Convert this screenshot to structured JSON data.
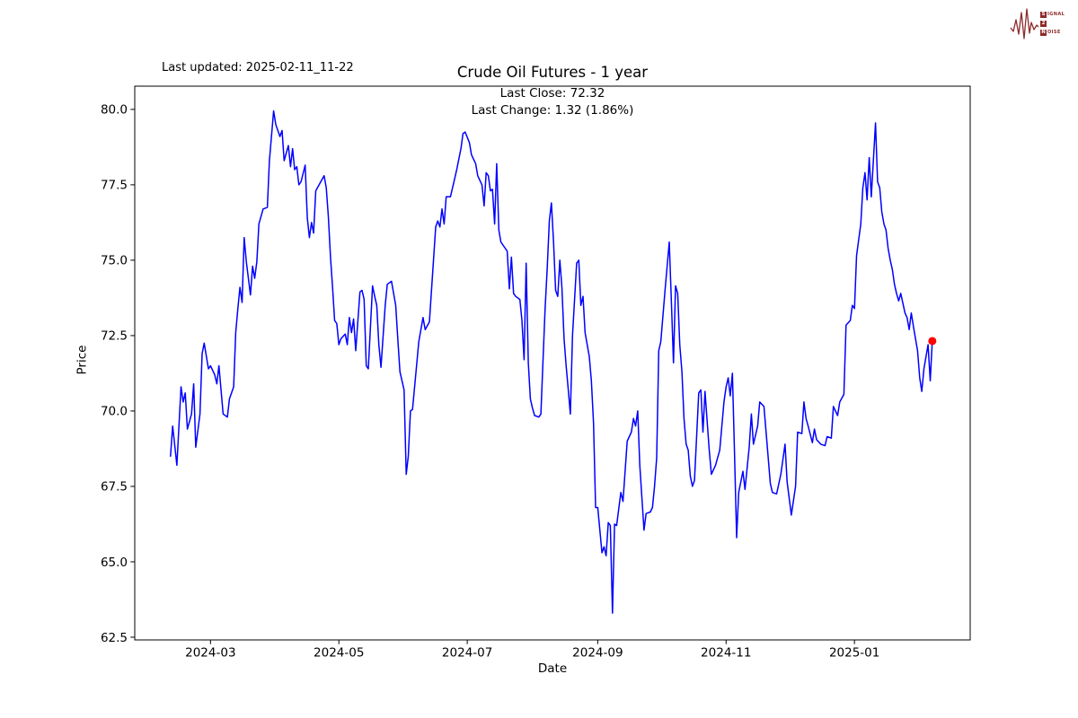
{
  "header": {
    "last_updated": "Last updated: 2025-02-11_11-22",
    "title": "Crude Oil Futures - 1 year",
    "subtitle_line1": "Last Close: 72.32",
    "subtitle_line2": "Last Change: 1.32 (1.86%)"
  },
  "logo": {
    "line1_initial": "S",
    "line1_rest": "IGNAL",
    "line2_initial": "2",
    "line2_rest": "",
    "line3_initial": "N",
    "line3_rest": "OISE",
    "color": "#8e2a2a"
  },
  "chart_data": {
    "type": "line",
    "title": "Crude Oil Futures - 1 year",
    "xlabel": "Date",
    "ylabel": "Price",
    "line_color": "#0000ff",
    "marker_color": "#ff0000",
    "last_close": 72.32,
    "last_change": "1.32 (1.86%)",
    "ylim": [
      62.41,
      80.77
    ],
    "x_domain": [
      "2024-01-25",
      "2025-02-25"
    ],
    "yticks": [
      62.5,
      65.0,
      67.5,
      70.0,
      72.5,
      75.0,
      77.5,
      80.0
    ],
    "xticks": [
      {
        "date": "2024-03-01",
        "label": "2024-03"
      },
      {
        "date": "2024-05-01",
        "label": "2024-05"
      },
      {
        "date": "2024-07-01",
        "label": "2024-07"
      },
      {
        "date": "2024-09-01",
        "label": "2024-09"
      },
      {
        "date": "2024-11-01",
        "label": "2024-11"
      },
      {
        "date": "2025-01-01",
        "label": "2025-01"
      }
    ],
    "grid": false,
    "legend": "none",
    "points": [
      [
        "2024-02-11",
        68.5
      ],
      [
        "2024-02-12",
        69.5
      ],
      [
        "2024-02-14",
        68.2
      ],
      [
        "2024-02-16",
        70.8
      ],
      [
        "2024-02-17",
        70.3
      ],
      [
        "2024-02-18",
        70.6
      ],
      [
        "2024-02-19",
        69.4
      ],
      [
        "2024-02-21",
        69.9
      ],
      [
        "2024-02-22",
        70.9
      ],
      [
        "2024-02-23",
        68.8
      ],
      [
        "2024-02-25",
        69.9
      ],
      [
        "2024-02-26",
        71.9
      ],
      [
        "2024-02-27",
        72.25
      ],
      [
        "2024-02-29",
        71.4
      ],
      [
        "2024-03-01",
        71.5
      ],
      [
        "2024-03-03",
        71.2
      ],
      [
        "2024-03-04",
        70.9
      ],
      [
        "2024-03-05",
        71.5
      ],
      [
        "2024-03-07",
        69.9
      ],
      [
        "2024-03-09",
        69.8
      ],
      [
        "2024-03-10",
        70.4
      ],
      [
        "2024-03-12",
        70.8
      ],
      [
        "2024-03-13",
        72.6
      ],
      [
        "2024-03-14",
        73.4
      ],
      [
        "2024-03-15",
        74.1
      ],
      [
        "2024-03-16",
        73.6
      ],
      [
        "2024-03-17",
        75.75
      ],
      [
        "2024-03-18",
        74.95
      ],
      [
        "2024-03-20",
        73.85
      ],
      [
        "2024-03-21",
        74.8
      ],
      [
        "2024-03-22",
        74.4
      ],
      [
        "2024-03-23",
        74.95
      ],
      [
        "2024-03-24",
        76.2
      ],
      [
        "2024-03-26",
        76.7
      ],
      [
        "2024-03-28",
        76.75
      ],
      [
        "2024-03-29",
        78.3
      ],
      [
        "2024-03-31",
        79.95
      ],
      [
        "2024-04-01",
        79.5
      ],
      [
        "2024-04-03",
        79.1
      ],
      [
        "2024-04-04",
        79.3
      ],
      [
        "2024-04-05",
        78.3
      ],
      [
        "2024-04-07",
        78.8
      ],
      [
        "2024-04-08",
        78.1
      ],
      [
        "2024-04-09",
        78.7
      ],
      [
        "2024-04-10",
        78.0
      ],
      [
        "2024-04-11",
        78.1
      ],
      [
        "2024-04-12",
        77.5
      ],
      [
        "2024-04-13",
        77.6
      ],
      [
        "2024-04-15",
        78.15
      ],
      [
        "2024-04-16",
        76.4
      ],
      [
        "2024-04-17",
        75.75
      ],
      [
        "2024-04-18",
        76.25
      ],
      [
        "2024-04-19",
        75.9
      ],
      [
        "2024-04-20",
        77.3
      ],
      [
        "2024-04-24",
        77.8
      ],
      [
        "2024-04-25",
        77.4
      ],
      [
        "2024-04-26",
        76.45
      ],
      [
        "2024-04-27",
        75.1
      ],
      [
        "2024-04-28",
        74.1
      ],
      [
        "2024-04-29",
        73.0
      ],
      [
        "2024-04-30",
        72.9
      ],
      [
        "2024-05-01",
        72.2
      ],
      [
        "2024-05-02",
        72.4
      ],
      [
        "2024-05-04",
        72.55
      ],
      [
        "2024-05-05",
        72.2
      ],
      [
        "2024-05-06",
        73.1
      ],
      [
        "2024-05-07",
        72.6
      ],
      [
        "2024-05-08",
        73.05
      ],
      [
        "2024-05-09",
        72.0
      ],
      [
        "2024-05-11",
        73.95
      ],
      [
        "2024-05-12",
        74.0
      ],
      [
        "2024-05-13",
        73.7
      ],
      [
        "2024-05-14",
        71.5
      ],
      [
        "2024-05-15",
        71.4
      ],
      [
        "2024-05-17",
        74.15
      ],
      [
        "2024-05-18",
        73.8
      ],
      [
        "2024-05-19",
        73.5
      ],
      [
        "2024-05-20",
        72.2
      ],
      [
        "2024-05-21",
        71.45
      ],
      [
        "2024-05-23",
        73.5
      ],
      [
        "2024-05-24",
        74.2
      ],
      [
        "2024-05-26",
        74.3
      ],
      [
        "2024-05-28",
        73.5
      ],
      [
        "2024-05-29",
        72.4
      ],
      [
        "2024-05-30",
        71.3
      ],
      [
        "2024-06-01",
        70.7
      ],
      [
        "2024-06-02",
        67.9
      ],
      [
        "2024-06-03",
        68.5
      ],
      [
        "2024-06-04",
        70.0
      ],
      [
        "2024-06-05",
        70.05
      ],
      [
        "2024-06-08",
        72.3
      ],
      [
        "2024-06-10",
        73.1
      ],
      [
        "2024-06-11",
        72.7
      ],
      [
        "2024-06-13",
        72.95
      ],
      [
        "2024-06-16",
        76.1
      ],
      [
        "2024-06-17",
        76.3
      ],
      [
        "2024-06-18",
        76.1
      ],
      [
        "2024-06-19",
        76.7
      ],
      [
        "2024-06-20",
        76.2
      ],
      [
        "2024-06-21",
        77.1
      ],
      [
        "2024-06-23",
        77.1
      ],
      [
        "2024-06-25",
        77.7
      ],
      [
        "2024-06-26",
        78.0
      ],
      [
        "2024-06-28",
        78.7
      ],
      [
        "2024-06-29",
        79.2
      ],
      [
        "2024-06-30",
        79.25
      ],
      [
        "2024-07-02",
        78.9
      ],
      [
        "2024-07-03",
        78.5
      ],
      [
        "2024-07-05",
        78.2
      ],
      [
        "2024-07-06",
        77.8
      ],
      [
        "2024-07-08",
        77.5
      ],
      [
        "2024-07-09",
        76.8
      ],
      [
        "2024-07-10",
        77.9
      ],
      [
        "2024-07-11",
        77.8
      ],
      [
        "2024-07-12",
        77.3
      ],
      [
        "2024-07-13",
        77.35
      ],
      [
        "2024-07-14",
        76.2
      ],
      [
        "2024-07-15",
        78.2
      ],
      [
        "2024-07-16",
        76.0
      ],
      [
        "2024-07-17",
        75.6
      ],
      [
        "2024-07-19",
        75.4
      ],
      [
        "2024-07-20",
        75.3
      ],
      [
        "2024-07-21",
        74.05
      ],
      [
        "2024-07-22",
        75.1
      ],
      [
        "2024-07-23",
        73.9
      ],
      [
        "2024-07-24",
        73.8
      ],
      [
        "2024-07-26",
        73.7
      ],
      [
        "2024-07-27",
        73.0
      ],
      [
        "2024-07-28",
        71.7
      ],
      [
        "2024-07-29",
        74.9
      ],
      [
        "2024-07-30",
        71.6
      ],
      [
        "2024-07-31",
        70.4
      ],
      [
        "2024-08-01",
        70.1
      ],
      [
        "2024-08-02",
        69.85
      ],
      [
        "2024-08-04",
        69.8
      ],
      [
        "2024-08-05",
        69.9
      ],
      [
        "2024-08-06",
        71.7
      ],
      [
        "2024-08-07",
        73.4
      ],
      [
        "2024-08-08",
        74.7
      ],
      [
        "2024-08-09",
        76.3
      ],
      [
        "2024-08-10",
        76.9
      ],
      [
        "2024-08-11",
        75.6
      ],
      [
        "2024-08-12",
        74.0
      ],
      [
        "2024-08-13",
        73.8
      ],
      [
        "2024-08-14",
        75.0
      ],
      [
        "2024-08-15",
        74.1
      ],
      [
        "2024-08-16",
        72.4
      ],
      [
        "2024-08-17",
        71.5
      ],
      [
        "2024-08-18",
        70.7
      ],
      [
        "2024-08-19",
        69.9
      ],
      [
        "2024-08-20",
        72.5
      ],
      [
        "2024-08-22",
        74.9
      ],
      [
        "2024-08-23",
        75.0
      ],
      [
        "2024-08-24",
        73.5
      ],
      [
        "2024-08-25",
        73.8
      ],
      [
        "2024-08-26",
        72.6
      ],
      [
        "2024-08-28",
        71.8
      ],
      [
        "2024-08-29",
        71.0
      ],
      [
        "2024-08-30",
        69.6
      ],
      [
        "2024-08-31",
        66.8
      ],
      [
        "2024-09-01",
        66.8
      ],
      [
        "2024-09-03",
        65.3
      ],
      [
        "2024-09-04",
        65.5
      ],
      [
        "2024-09-05",
        65.2
      ],
      [
        "2024-09-06",
        66.3
      ],
      [
        "2024-09-07",
        66.2
      ],
      [
        "2024-09-08",
        63.3
      ],
      [
        "2024-09-09",
        66.25
      ],
      [
        "2024-09-10",
        66.2
      ],
      [
        "2024-09-12",
        67.3
      ],
      [
        "2024-09-13",
        67.0
      ],
      [
        "2024-09-15",
        69.0
      ],
      [
        "2024-09-17",
        69.3
      ],
      [
        "2024-09-18",
        69.75
      ],
      [
        "2024-09-19",
        69.5
      ],
      [
        "2024-09-20",
        70.0
      ],
      [
        "2024-09-21",
        68.2
      ],
      [
        "2024-09-23",
        66.05
      ],
      [
        "2024-09-24",
        66.6
      ],
      [
        "2024-09-26",
        66.65
      ],
      [
        "2024-09-27",
        66.8
      ],
      [
        "2024-09-28",
        67.5
      ],
      [
        "2024-09-29",
        68.45
      ],
      [
        "2024-09-30",
        72.0
      ],
      [
        "2024-10-01",
        72.3
      ],
      [
        "2024-10-03",
        74.0
      ],
      [
        "2024-10-05",
        75.6
      ],
      [
        "2024-10-06",
        73.6
      ],
      [
        "2024-10-07",
        71.6
      ],
      [
        "2024-10-08",
        74.15
      ],
      [
        "2024-10-09",
        73.9
      ],
      [
        "2024-10-10",
        72.2
      ],
      [
        "2024-10-11",
        71.3
      ],
      [
        "2024-10-12",
        69.75
      ],
      [
        "2024-10-13",
        68.9
      ],
      [
        "2024-10-14",
        68.7
      ],
      [
        "2024-10-15",
        67.85
      ],
      [
        "2024-10-16",
        67.5
      ],
      [
        "2024-10-17",
        67.7
      ],
      [
        "2024-10-19",
        70.6
      ],
      [
        "2024-10-20",
        70.7
      ],
      [
        "2024-10-21",
        69.3
      ],
      [
        "2024-10-22",
        70.65
      ],
      [
        "2024-10-24",
        68.7
      ],
      [
        "2024-10-25",
        67.9
      ],
      [
        "2024-10-27",
        68.2
      ],
      [
        "2024-10-29",
        68.7
      ],
      [
        "2024-10-31",
        70.3
      ],
      [
        "2024-11-01",
        70.8
      ],
      [
        "2024-11-02",
        71.1
      ],
      [
        "2024-11-03",
        70.5
      ],
      [
        "2024-11-04",
        71.25
      ],
      [
        "2024-11-05",
        68.65
      ],
      [
        "2024-11-06",
        65.8
      ],
      [
        "2024-11-07",
        67.3
      ],
      [
        "2024-11-09",
        68.0
      ],
      [
        "2024-11-10",
        67.4
      ],
      [
        "2024-11-12",
        68.8
      ],
      [
        "2024-11-13",
        69.9
      ],
      [
        "2024-11-14",
        68.9
      ],
      [
        "2024-11-16",
        69.5
      ],
      [
        "2024-11-17",
        70.3
      ],
      [
        "2024-11-19",
        70.15
      ],
      [
        "2024-11-20",
        69.3
      ],
      [
        "2024-11-22",
        67.6
      ],
      [
        "2024-11-23",
        67.3
      ],
      [
        "2024-11-25",
        67.25
      ],
      [
        "2024-11-27",
        67.9
      ],
      [
        "2024-11-29",
        68.9
      ],
      [
        "2024-11-30",
        67.65
      ],
      [
        "2024-12-02",
        66.55
      ],
      [
        "2024-12-04",
        67.5
      ],
      [
        "2024-12-05",
        69.3
      ],
      [
        "2024-12-07",
        69.25
      ],
      [
        "2024-12-08",
        70.3
      ],
      [
        "2024-12-09",
        69.75
      ],
      [
        "2024-12-10",
        69.5
      ],
      [
        "2024-12-12",
        68.95
      ],
      [
        "2024-12-13",
        69.4
      ],
      [
        "2024-12-14",
        69.05
      ],
      [
        "2024-12-16",
        68.9
      ],
      [
        "2024-12-18",
        68.85
      ],
      [
        "2024-12-19",
        69.15
      ],
      [
        "2024-12-21",
        69.1
      ],
      [
        "2024-12-22",
        70.15
      ],
      [
        "2024-12-24",
        69.85
      ],
      [
        "2024-12-25",
        70.3
      ],
      [
        "2024-12-27",
        70.55
      ],
      [
        "2024-12-28",
        72.85
      ],
      [
        "2024-12-30",
        73.0
      ],
      [
        "2024-12-31",
        73.5
      ],
      [
        "2025-01-01",
        73.4
      ],
      [
        "2025-01-02",
        75.15
      ],
      [
        "2025-01-04",
        76.2
      ],
      [
        "2025-01-05",
        77.4
      ],
      [
        "2025-01-06",
        77.9
      ],
      [
        "2025-01-07",
        77.0
      ],
      [
        "2025-01-08",
        78.4
      ],
      [
        "2025-01-09",
        77.1
      ],
      [
        "2025-01-10",
        78.3
      ],
      [
        "2025-01-11",
        79.55
      ],
      [
        "2025-01-12",
        77.6
      ],
      [
        "2025-01-13",
        77.4
      ],
      [
        "2025-01-14",
        76.6
      ],
      [
        "2025-01-15",
        76.2
      ],
      [
        "2025-01-16",
        76.0
      ],
      [
        "2025-01-17",
        75.4
      ],
      [
        "2025-01-18",
        75.0
      ],
      [
        "2025-01-19",
        74.7
      ],
      [
        "2025-01-20",
        74.2
      ],
      [
        "2025-01-21",
        73.9
      ],
      [
        "2025-01-22",
        73.65
      ],
      [
        "2025-01-23",
        73.9
      ],
      [
        "2025-01-25",
        73.25
      ],
      [
        "2025-01-26",
        73.1
      ],
      [
        "2025-01-27",
        72.7
      ],
      [
        "2025-01-28",
        73.25
      ],
      [
        "2025-01-29",
        72.8
      ],
      [
        "2025-01-30",
        72.4
      ],
      [
        "2025-01-31",
        72.0
      ],
      [
        "2025-02-01",
        71.1
      ],
      [
        "2025-02-02",
        70.65
      ],
      [
        "2025-02-03",
        71.4
      ],
      [
        "2025-02-05",
        72.2
      ],
      [
        "2025-02-06",
        71.0
      ],
      [
        "2025-02-07",
        72.32
      ]
    ]
  }
}
